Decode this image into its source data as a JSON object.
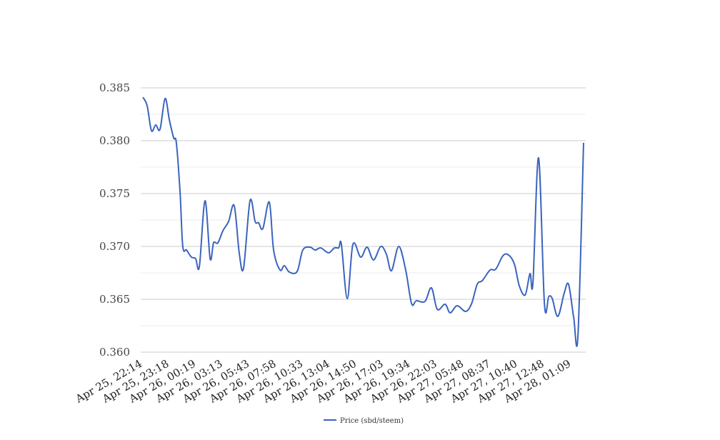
{
  "chart_data": {
    "type": "line",
    "title": "",
    "xlabel": "",
    "ylabel": "",
    "ylim": [
      0.36,
      0.385
    ],
    "xlim": [
      -0.08,
      16.53
    ],
    "y_ticks": [
      0.36,
      0.365,
      0.37,
      0.375,
      0.38,
      0.385
    ],
    "y_tick_labels": [
      "0.360",
      "0.365",
      "0.370",
      "0.375",
      "0.380",
      "0.385"
    ],
    "x_tick_labels": [
      "Apr 25, 22:14",
      "Apr 25, 23:18",
      "Apr 26, 00:19",
      "Apr 26, 03:13",
      "Apr 26, 05:43",
      "Apr 26, 07:58",
      "Apr 26, 10:33",
      "Apr 26, 13:04",
      "Apr 26, 14:50",
      "Apr 26, 17:03",
      "Apr 26, 19:34",
      "Apr 26, 22:03",
      "Apr 27, 05:48",
      "Apr 27, 08:37",
      "Apr 27, 10:40",
      "Apr 27, 12:48",
      "Apr 28, 01:09"
    ],
    "grid": true,
    "legend_position": "bottom",
    "series": [
      {
        "name": "Price (sbd/steem)",
        "color": "#3a64bd",
        "x": [
          0,
          0.16,
          0.32,
          0.48,
          0.64,
          0.83,
          0.99,
          1.15,
          1.25,
          1.39,
          1.49,
          1.63,
          1.81,
          1.97,
          2.11,
          2.32,
          2.51,
          2.64,
          2.8,
          2.99,
          3.2,
          3.41,
          3.6,
          3.76,
          4,
          4.19,
          4.32,
          4.48,
          4.72,
          4.88,
          5.12,
          5.28,
          5.47,
          5.76,
          5.97,
          6.24,
          6.43,
          6.64,
          6.93,
          7.15,
          7.31,
          7.41,
          7.63,
          7.84,
          8.13,
          8.37,
          8.61,
          8.88,
          9.09,
          9.28,
          9.55,
          9.81,
          10.03,
          10.21,
          10.53,
          10.77,
          10.99,
          11.28,
          11.47,
          11.73,
          12.05,
          12.27,
          12.48,
          12.67,
          12.96,
          13.17,
          13.44,
          13.65,
          13.87,
          14.05,
          14.27,
          14.45,
          14.56,
          14.77,
          14.99,
          15.15,
          15.28,
          15.49,
          15.73,
          15.89,
          16.08,
          16.24,
          16.45
        ],
        "values": [
          0.38412,
          0.38331,
          0.38095,
          0.38149,
          0.38108,
          0.38399,
          0.38196,
          0.38027,
          0.3798,
          0.37507,
          0.37,
          0.36966,
          0.36899,
          0.36885,
          0.36811,
          0.37432,
          0.36885,
          0.37034,
          0.37034,
          0.37149,
          0.37236,
          0.37385,
          0.36932,
          0.36797,
          0.37432,
          0.37236,
          0.37223,
          0.37169,
          0.37419,
          0.36966,
          0.36777,
          0.36818,
          0.36757,
          0.36764,
          0.36966,
          0.36993,
          0.36966,
          0.36986,
          0.36939,
          0.36986,
          0.36986,
          0.3702,
          0.36507,
          0.3702,
          0.36899,
          0.36993,
          0.36872,
          0.37,
          0.36926,
          0.3677,
          0.37,
          0.36777,
          0.36459,
          0.36486,
          0.3648,
          0.36608,
          0.36405,
          0.36453,
          0.36372,
          0.36439,
          0.36385,
          0.36459,
          0.36642,
          0.36676,
          0.36777,
          0.36784,
          0.36912,
          0.36919,
          0.36831,
          0.36628,
          0.36541,
          0.36743,
          0.36655,
          0.37838,
          0.36453,
          0.36527,
          0.36507,
          0.36338,
          0.36561,
          0.36642,
          0.36331,
          0.36155,
          0.3798
        ]
      }
    ]
  }
}
